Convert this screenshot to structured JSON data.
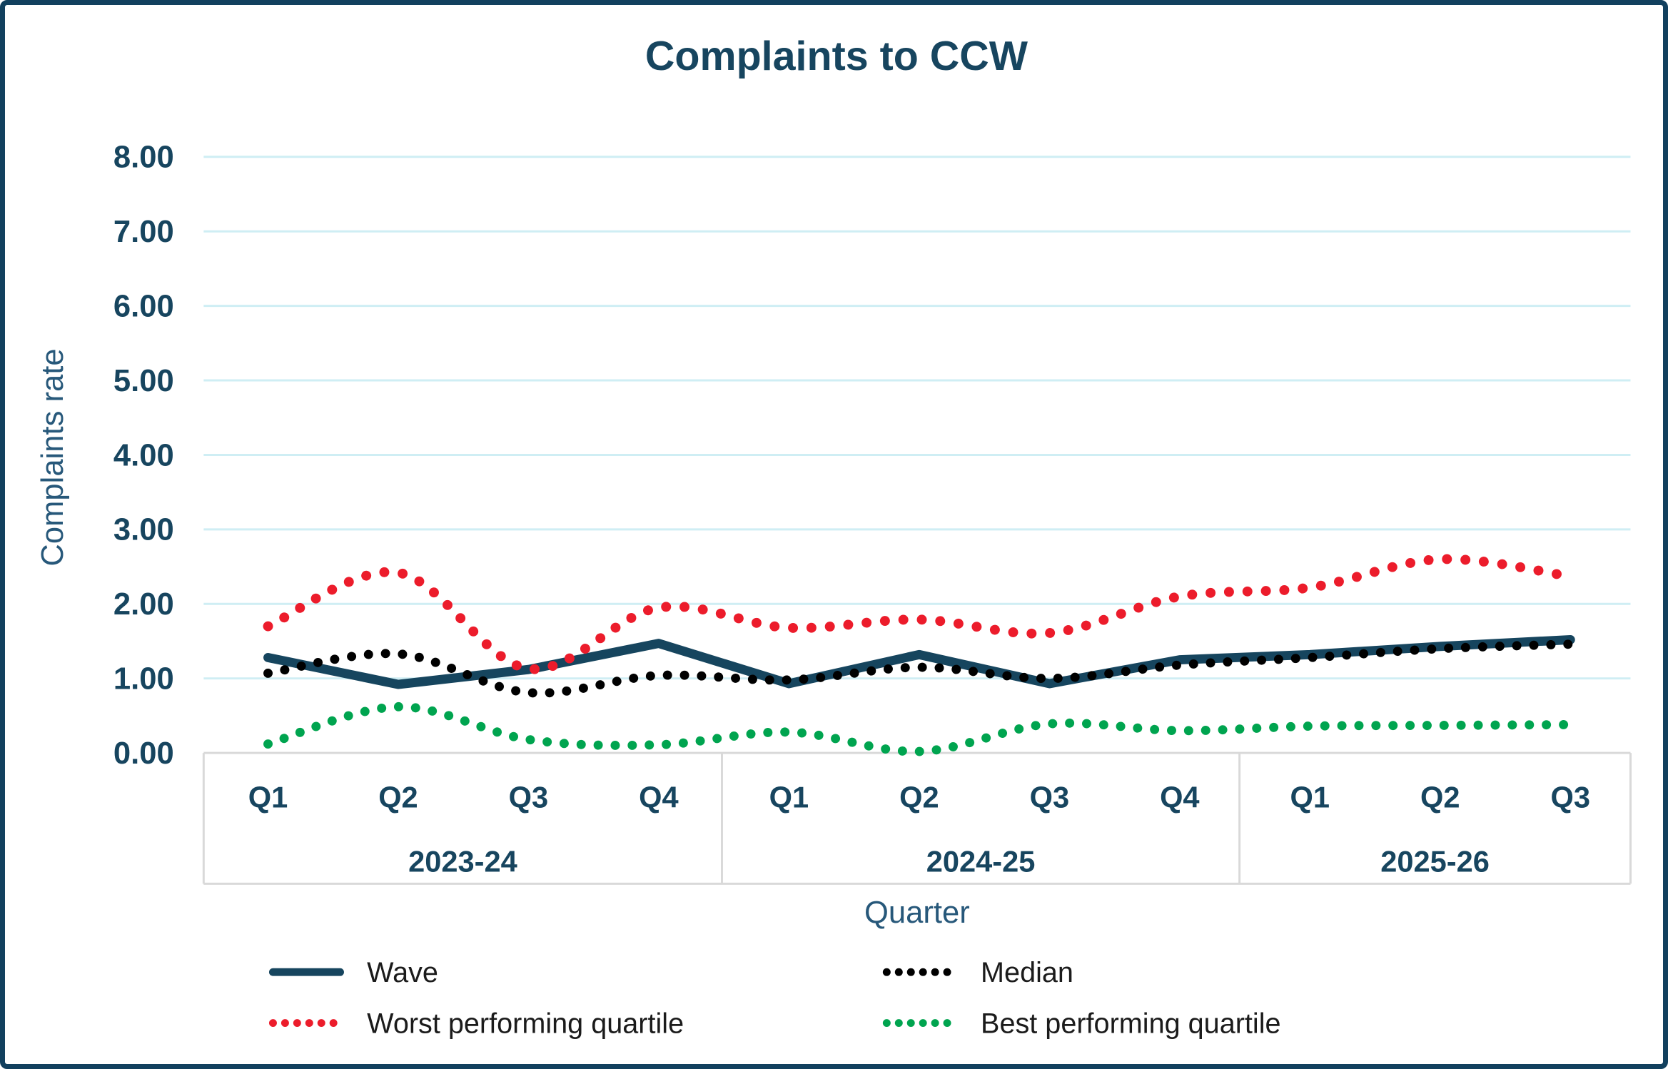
{
  "chart_data": {
    "type": "line",
    "title": "Complaints to CCW",
    "xlabel": "Quarter",
    "ylabel": "Complaints rate",
    "ylim": [
      0,
      8
    ],
    "grid": true,
    "legend_position": "bottom",
    "y_axis": {
      "tick_labels": [
        "0.00",
        "1.00",
        "2.00",
        "3.00",
        "4.00",
        "5.00",
        "6.00",
        "7.00",
        "8.00"
      ]
    },
    "x_axis": {
      "groups": [
        {
          "label": "2023-24",
          "quarters": [
            "Q1",
            "Q2",
            "Q3",
            "Q4"
          ]
        },
        {
          "label": "2024-25",
          "quarters": [
            "Q1",
            "Q2",
            "Q3",
            "Q4"
          ]
        },
        {
          "label": "2025-26",
          "quarters": [
            "Q1",
            "Q2",
            "Q3"
          ]
        }
      ]
    },
    "categories": [
      "Q1 2023-24",
      "Q2 2023-24",
      "Q3 2023-24",
      "Q4 2023-24",
      "Q1 2024-25",
      "Q2 2024-25",
      "Q3 2024-25",
      "Q4 2024-25",
      "Q1 2025-26",
      "Q2 2025-26",
      "Q3 2025-26"
    ],
    "series": [
      {
        "name": "Wave",
        "color": "#16455e",
        "style": "solid",
        "values": [
          1.28,
          0.92,
          1.12,
          1.47,
          0.93,
          1.32,
          0.93,
          1.25,
          1.32,
          1.43,
          1.52
        ]
      },
      {
        "name": "Median",
        "color": "#000000",
        "style": "dotted",
        "values": [
          1.07,
          1.33,
          0.81,
          1.04,
          0.98,
          1.15,
          1.0,
          1.18,
          1.28,
          1.4,
          1.46
        ]
      },
      {
        "name": "Worst performing quartile",
        "color": "#ec1c2b",
        "style": "dotted",
        "values": [
          1.7,
          2.42,
          1.13,
          1.95,
          1.68,
          1.79,
          1.61,
          2.1,
          2.22,
          2.6,
          2.37
        ]
      },
      {
        "name": "Best performing quartile",
        "color": "#00a44f",
        "style": "dotted",
        "values": [
          0.12,
          0.62,
          0.18,
          0.11,
          0.28,
          0.02,
          0.39,
          0.3,
          0.36,
          0.37,
          0.38
        ]
      }
    ],
    "legend": {
      "items": [
        {
          "label": "Wave",
          "series_index": 0
        },
        {
          "label": "Median",
          "series_index": 1
        },
        {
          "label": "Worst performing quartile",
          "series_index": 2
        },
        {
          "label": "Best performing quartile",
          "series_index": 3
        }
      ]
    }
  },
  "colors": {
    "frame_border": "#12405e",
    "gridline": "#cfeef4",
    "axis_band_line": "#d9d9d9",
    "heading_text": "#17455f",
    "axis_title_text": "#27587a",
    "legend_text": "#1b1b1b"
  }
}
